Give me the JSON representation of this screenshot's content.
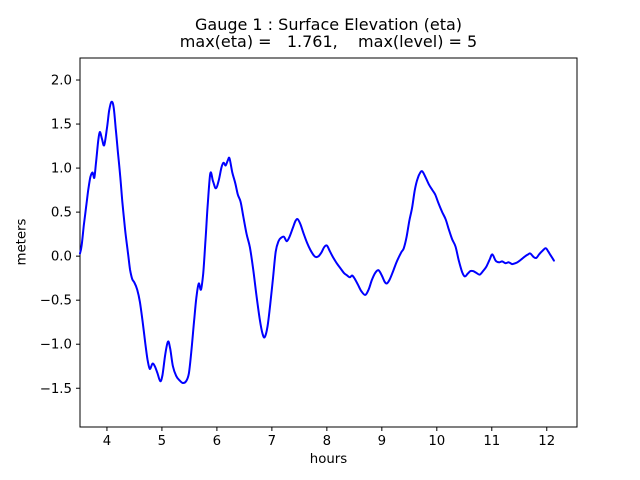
{
  "figure": {
    "title_line1": "Gauge 1 : Surface Elevation (eta)",
    "title_line2": "max(eta) =   1.761,    max(level) = 5",
    "xlabel": "hours",
    "ylabel": "meters"
  },
  "chart_data": {
    "type": "line",
    "title": "Gauge 1 : Surface Elevation (eta)",
    "subtitle": "max(eta) =   1.761,    max(level) = 5",
    "xlabel": "hours",
    "ylabel": "meters",
    "max_eta": 1.761,
    "max_level": 5,
    "xlim": [
      3.51,
      12.55
    ],
    "ylim": [
      -1.94,
      2.25
    ],
    "x_ticks": [
      4,
      5,
      6,
      7,
      8,
      9,
      10,
      11,
      12
    ],
    "y_ticks": [
      -1.5,
      -1.0,
      -0.5,
      0.0,
      0.5,
      1.0,
      1.5,
      2.0
    ],
    "grid": false,
    "legend": null,
    "line_color": "#0000ff",
    "line_width": 2,
    "background": "#ffffff",
    "axis_color": "#000000",
    "series": [
      {
        "name": "eta",
        "x": [
          3.51,
          3.54,
          3.58,
          3.62,
          3.66,
          3.7,
          3.74,
          3.77,
          3.8,
          3.84,
          3.87,
          3.91,
          3.95,
          4.0,
          4.04,
          4.08,
          4.12,
          4.16,
          4.2,
          4.24,
          4.28,
          4.33,
          4.38,
          4.42,
          4.46,
          4.5,
          4.55,
          4.6,
          4.65,
          4.7,
          4.74,
          4.78,
          4.83,
          4.87,
          4.92,
          4.97,
          5.01,
          5.06,
          5.11,
          5.15,
          5.2,
          5.26,
          5.32,
          5.38,
          5.44,
          5.49,
          5.54,
          5.59,
          5.63,
          5.67,
          5.71,
          5.75,
          5.79,
          5.83,
          5.88,
          5.93,
          5.98,
          6.03,
          6.08,
          6.12,
          6.16,
          6.2,
          6.23,
          6.28,
          6.33,
          6.38,
          6.43,
          6.48,
          6.54,
          6.6,
          6.66,
          6.72,
          6.78,
          6.83,
          6.87,
          6.92,
          6.97,
          7.02,
          7.07,
          7.12,
          7.17,
          7.22,
          7.27,
          7.32,
          7.38,
          7.43,
          7.47,
          7.52,
          7.58,
          7.64,
          7.7,
          7.76,
          7.8,
          7.85,
          7.9,
          7.95,
          8.0,
          8.06,
          8.12,
          8.18,
          8.25,
          8.31,
          8.37,
          8.42,
          8.46,
          8.51,
          8.57,
          8.63,
          8.7,
          8.76,
          8.82,
          8.88,
          8.94,
          9.0,
          9.05,
          9.09,
          9.14,
          9.2,
          9.26,
          9.31,
          9.36,
          9.4,
          9.45,
          9.5,
          9.55,
          9.6,
          9.65,
          9.7,
          9.74,
          9.8,
          9.86,
          9.92,
          9.97,
          10.03,
          10.09,
          10.16,
          10.22,
          10.28,
          10.34,
          10.4,
          10.46,
          10.51,
          10.56,
          10.61,
          10.66,
          10.72,
          10.78,
          10.84,
          10.9,
          10.96,
          11.01,
          11.07,
          11.13,
          11.19,
          11.25,
          11.31,
          11.37,
          11.43,
          11.49,
          11.55,
          11.61,
          11.66,
          11.7,
          11.76,
          11.81,
          11.86,
          11.92,
          11.98,
          12.03,
          12.08,
          12.13
        ],
        "y": [
          0.03,
          0.12,
          0.35,
          0.55,
          0.75,
          0.9,
          0.95,
          0.89,
          1.05,
          1.3,
          1.41,
          1.33,
          1.26,
          1.45,
          1.65,
          1.75,
          1.7,
          1.45,
          1.18,
          0.92,
          0.62,
          0.3,
          0.05,
          -0.15,
          -0.26,
          -0.3,
          -0.38,
          -0.52,
          -0.75,
          -1.0,
          -1.18,
          -1.28,
          -1.22,
          -1.25,
          -1.33,
          -1.42,
          -1.35,
          -1.12,
          -0.97,
          -1.05,
          -1.25,
          -1.36,
          -1.41,
          -1.44,
          -1.42,
          -1.33,
          -1.05,
          -0.7,
          -0.45,
          -0.31,
          -0.38,
          -0.2,
          0.15,
          0.55,
          0.94,
          0.85,
          0.77,
          0.85,
          1.0,
          1.06,
          1.03,
          1.09,
          1.11,
          0.95,
          0.84,
          0.7,
          0.62,
          0.45,
          0.25,
          0.1,
          -0.15,
          -0.45,
          -0.72,
          -0.88,
          -0.92,
          -0.8,
          -0.55,
          -0.25,
          0.05,
          0.17,
          0.21,
          0.22,
          0.17,
          0.22,
          0.32,
          0.4,
          0.42,
          0.36,
          0.25,
          0.15,
          0.07,
          0.01,
          -0.01,
          0.0,
          0.04,
          0.1,
          0.12,
          0.05,
          -0.02,
          -0.08,
          -0.14,
          -0.19,
          -0.22,
          -0.24,
          -0.22,
          -0.26,
          -0.33,
          -0.4,
          -0.44,
          -0.38,
          -0.27,
          -0.19,
          -0.16,
          -0.22,
          -0.29,
          -0.31,
          -0.27,
          -0.18,
          -0.08,
          -0.01,
          0.05,
          0.09,
          0.22,
          0.4,
          0.55,
          0.75,
          0.88,
          0.95,
          0.96,
          0.89,
          0.81,
          0.75,
          0.7,
          0.6,
          0.51,
          0.42,
          0.3,
          0.19,
          0.11,
          -0.05,
          -0.18,
          -0.23,
          -0.2,
          -0.17,
          -0.17,
          -0.19,
          -0.21,
          -0.17,
          -0.12,
          -0.04,
          0.02,
          -0.05,
          -0.07,
          -0.06,
          -0.08,
          -0.07,
          -0.09,
          -0.08,
          -0.06,
          -0.03,
          0.0,
          0.02,
          0.03,
          -0.01,
          -0.02,
          0.02,
          0.06,
          0.09,
          0.05,
          0.0,
          -0.05
        ]
      }
    ]
  }
}
